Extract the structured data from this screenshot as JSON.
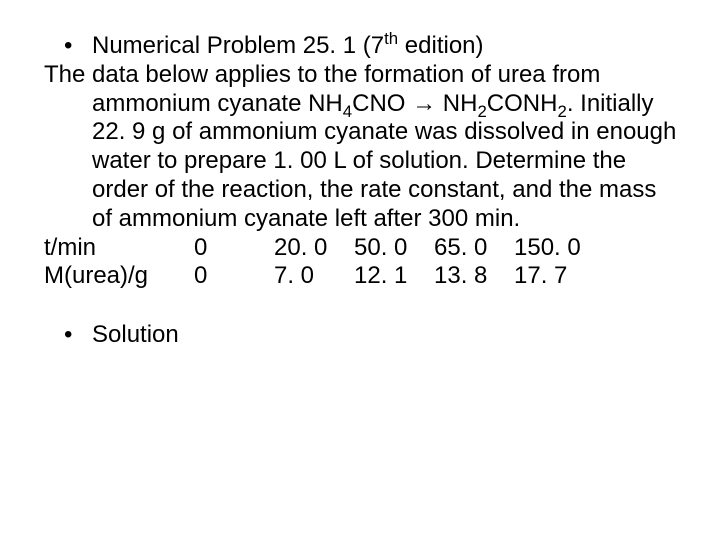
{
  "title_prefix": "Numerical Problem 25. 1 (7",
  "title_suffix": " edition)",
  "title_sup": "th",
  "body_p1": "The data below applies to the formation of urea from ammonium cyanate NH",
  "sub4": "4",
  "body_p2": "CNO → NH",
  "sub2a": "2",
  "body_p3": "CONH",
  "sub2b": "2",
  "body_p4": ". Initially 22. 9 g of ammonium cyanate was dissolved in enough water to prepare 1. 00 L of solution. Determine the order of the reaction, the rate constant, and the mass of ammonium cyanate left after 300 min.",
  "row1_label": "t/min",
  "row1_v0": "0",
  "row1_v1": "20. 0",
  "row1_v2": "50. 0",
  "row1_v3": "65. 0",
  "row1_v4": "150. 0",
  "row2_label": "M(urea)/g",
  "row2_v0": "0",
  "row2_v1": "7. 0",
  "row2_v2": "12. 1",
  "row2_v3": "13. 8",
  "row2_v4": "17. 7",
  "solution": "Solution",
  "bullet": "•"
}
